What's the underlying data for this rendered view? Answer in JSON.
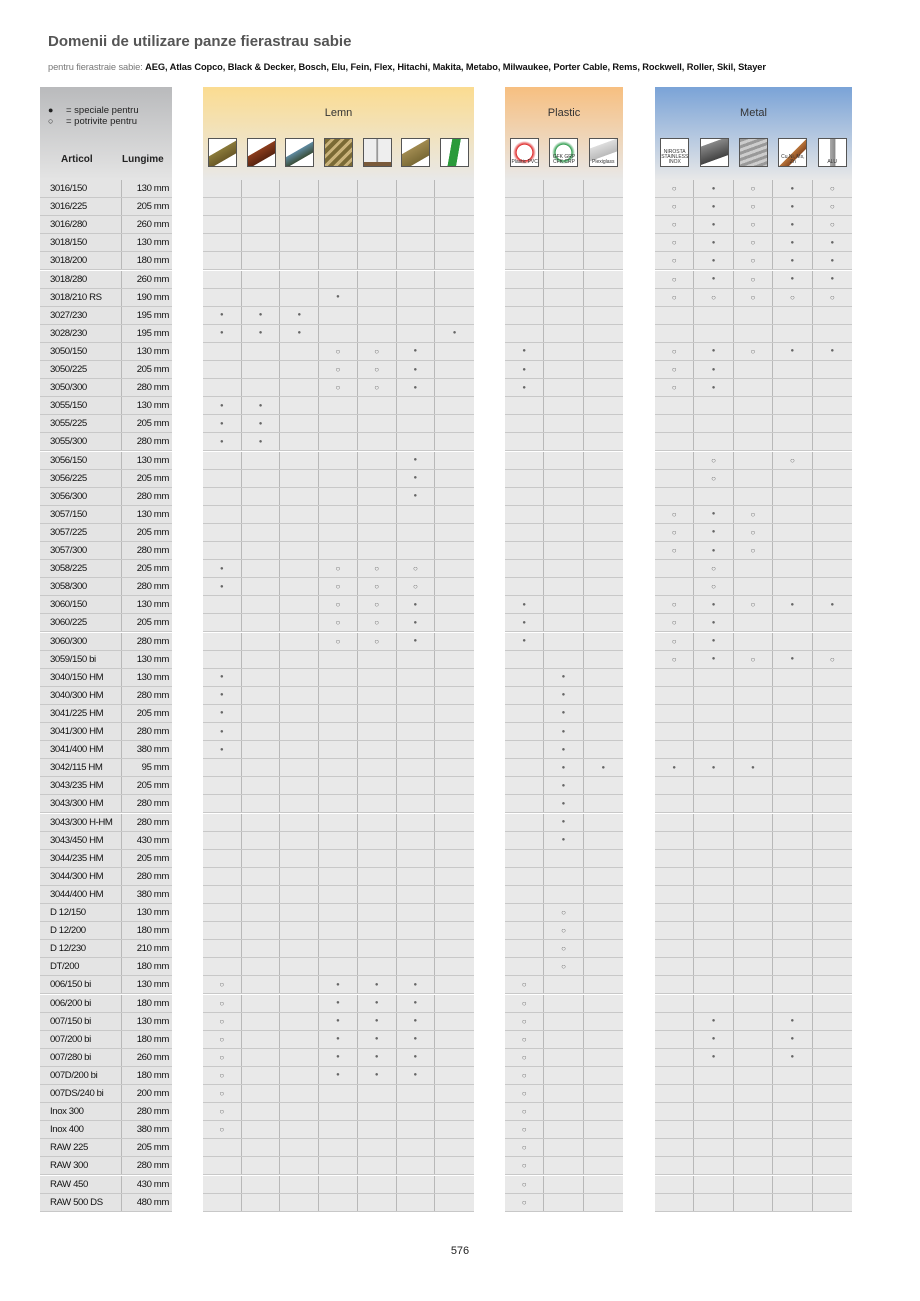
{
  "title": "Domenii de utilizare panze fierastrau sabie",
  "subtitle_prefix": "pentru fierastraie sabie:",
  "subtitle_brands": "AEG, Atlas Copco, Black & Decker, Bosch, Elu, Fein, Flex, Hitachi, Makita, Metabo, Milwaukee, Porter Cable, Rems, Rockwell, Roller, Skil, Stayer",
  "legend": {
    "filled_symbol": "●",
    "filled_label": "= speciale pentru",
    "open_symbol": "○",
    "open_label": "= potrivite pentru"
  },
  "columns": {
    "article": "Articol",
    "length": "Lungime"
  },
  "groups": [
    {
      "name": "Lemn",
      "color": "#fbdc91",
      "icons": [
        {
          "icon": "timber-beams-icon",
          "label": ""
        },
        {
          "icon": "hardwood-icon",
          "label": ""
        },
        {
          "icon": "laminated-board-icon",
          "label": ""
        },
        {
          "icon": "pallet-icon",
          "label": ""
        },
        {
          "icon": "window-frame-icon",
          "label": ""
        },
        {
          "icon": "nailed-wood-icon",
          "label": ""
        },
        {
          "icon": "green-branch-icon",
          "label": ""
        }
      ]
    },
    {
      "name": "Plastic",
      "color": "#f7bf80",
      "icons": [
        {
          "icon": "pvc-icon",
          "label": "Plastic PVC"
        },
        {
          "icon": "gfk-icon",
          "label": "GFK GRP CFK CRP"
        },
        {
          "icon": "plexiglass-icon",
          "label": "Plexiglass"
        }
      ]
    },
    {
      "name": "Metal",
      "color": "#7aa3d7",
      "icons": [
        {
          "icon": "stainless-steel-icon",
          "label": "NIROSTA STAINLESS INOX"
        },
        {
          "icon": "steel-profile-icon",
          "label": ""
        },
        {
          "icon": "sheet-metal-icon",
          "label": ""
        },
        {
          "icon": "non-ferrous-pipe-icon",
          "label": "Cu,Ni, Ms, Zn"
        },
        {
          "icon": "alu-profile-icon",
          "label": "ALU"
        }
      ]
    }
  ],
  "symbols": {
    "filled": "●",
    "open": "○"
  },
  "rows_legend": "marks per column: Lemn(7) Plastic(3) Metal(5); * = speciale, o = potrivite, . = none",
  "rows": [
    {
      "article": "3016/150",
      "length": "130 mm",
      "marks": ".......|...|o*o*o"
    },
    {
      "article": "3016/225",
      "length": "205 mm",
      "marks": ".......|...|o*o*o"
    },
    {
      "article": "3016/280",
      "length": "260 mm",
      "marks": ".......|...|o*o*o"
    },
    {
      "article": "3018/150",
      "length": "130 mm",
      "marks": ".......|...|o*o**"
    },
    {
      "article": "3018/200",
      "length": "180 mm",
      "marks": ".......|...|o*o**"
    },
    {
      "article": "3018/280",
      "length": "260 mm",
      "marks": ".......|...|o*o**"
    },
    {
      "article": "3018/210 RS",
      "length": "190 mm",
      "marks": "...*...|...|ooooo"
    },
    {
      "article": "3027/230",
      "length": "195 mm",
      "marks": "***....|...|....."
    },
    {
      "article": "3028/230",
      "length": "195 mm",
      "marks": "***...*|...|....."
    },
    {
      "article": "3050/150",
      "length": "130 mm",
      "marks": "...oo*.|*..|o*o**"
    },
    {
      "article": "3050/225",
      "length": "205 mm",
      "marks": "...oo*.|*..|o*..."
    },
    {
      "article": "3050/300",
      "length": "280 mm",
      "marks": "...oo*.|*..|o*..."
    },
    {
      "article": "3055/150",
      "length": "130 mm",
      "marks": "**.....|...|....."
    },
    {
      "article": "3055/225",
      "length": "205 mm",
      "marks": "**.....|...|....."
    },
    {
      "article": "3055/300",
      "length": "280 mm",
      "marks": "**.....|...|....."
    },
    {
      "article": "3056/150",
      "length": "130 mm",
      "marks": ".....*.|...|.o.o."
    },
    {
      "article": "3056/225",
      "length": "205 mm",
      "marks": ".....*.|...|.o..."
    },
    {
      "article": "3056/300",
      "length": "280 mm",
      "marks": ".....*.|...|....."
    },
    {
      "article": "3057/150",
      "length": "130 mm",
      "marks": ".......|...|o*o.."
    },
    {
      "article": "3057/225",
      "length": "205 mm",
      "marks": ".......|...|o*o.."
    },
    {
      "article": "3057/300",
      "length": "280 mm",
      "marks": ".......|...|o*o.."
    },
    {
      "article": "3058/225",
      "length": "205 mm",
      "marks": "*..ooo.|...|.o..."
    },
    {
      "article": "3058/300",
      "length": "280 mm",
      "marks": "*..ooo.|...|.o..."
    },
    {
      "article": "3060/150",
      "length": "130 mm",
      "marks": "...oo*.|*..|o*o**"
    },
    {
      "article": "3060/225",
      "length": "205 mm",
      "marks": "...oo*.|*..|o*..."
    },
    {
      "article": "3060/300",
      "length": "280 mm",
      "marks": "...oo*.|*..|o*..."
    },
    {
      "article": "3059/150 bi",
      "length": "130 mm",
      "marks": ".......|...|o*o*o"
    },
    {
      "article": "3040/150 HM",
      "length": "130 mm",
      "marks": "*......|.*.|....."
    },
    {
      "article": "3040/300 HM",
      "length": "280 mm",
      "marks": "*......|.*.|....."
    },
    {
      "article": "3041/225 HM",
      "length": "205 mm",
      "marks": "*......|.*.|....."
    },
    {
      "article": "3041/300 HM",
      "length": "280 mm",
      "marks": "*......|.*.|....."
    },
    {
      "article": "3041/400 HM",
      "length": "380 mm",
      "marks": "*......|.*.|....."
    },
    {
      "article": "3042/115 HM",
      "length": "95 mm",
      "marks": ".......|.**|***.."
    },
    {
      "article": "3043/235 HM",
      "length": "205 mm",
      "marks": ".......|.*.|....."
    },
    {
      "article": "3043/300 HM",
      "length": "280 mm",
      "marks": ".......|.*.|....."
    },
    {
      "article": "3043/300 H-HM",
      "length": "280 mm",
      "marks": ".......|.*.|....."
    },
    {
      "article": "3043/450 HM",
      "length": "430 mm",
      "marks": ".......|.*.|....."
    },
    {
      "article": "3044/235 HM",
      "length": "205 mm",
      "marks": ".......|...|....."
    },
    {
      "article": "3044/300 HM",
      "length": "280 mm",
      "marks": ".......|...|....."
    },
    {
      "article": "3044/400 HM",
      "length": "380 mm",
      "marks": ".......|...|....."
    },
    {
      "article": "D 12/150",
      "length": "130 mm",
      "marks": ".......|.o.|....."
    },
    {
      "article": "D 12/200",
      "length": "180 mm",
      "marks": ".......|.o.|....."
    },
    {
      "article": "D 12/230",
      "length": "210 mm",
      "marks": ".......|.o.|....."
    },
    {
      "article": "DT/200",
      "length": "180 mm",
      "marks": ".......|.o.|....."
    },
    {
      "article": "006/150 bi",
      "length": "130 mm",
      "marks": "o..***.|o..|....."
    },
    {
      "article": "006/200 bi",
      "length": "180 mm",
      "marks": "o..***.|o..|....."
    },
    {
      "article": "007/150 bi",
      "length": "130 mm",
      "marks": "o..***.|o..|.*.*."
    },
    {
      "article": "007/200 bi",
      "length": "180 mm",
      "marks": "o..***.|o..|.*.*."
    },
    {
      "article": "007/280 bi",
      "length": "260 mm",
      "marks": "o..***.|o..|.*.*."
    },
    {
      "article": "007D/200 bi",
      "length": "180 mm",
      "marks": "o..***.|o..|....."
    },
    {
      "article": "007DS/240 bi",
      "length": "200 mm",
      "marks": "o......|o..|....."
    },
    {
      "article": "Inox 300",
      "length": "280 mm",
      "marks": "o......|o..|....."
    },
    {
      "article": "Inox 400",
      "length": "380 mm",
      "marks": "o......|o..|....."
    },
    {
      "article": "RAW 225",
      "length": "205 mm",
      "marks": ".......|o..|....."
    },
    {
      "article": "RAW 300",
      "length": "280 mm",
      "marks": ".......|o..|....."
    },
    {
      "article": "RAW 450",
      "length": "430 mm",
      "marks": ".......|o..|....."
    },
    {
      "article": "RAW 500 DS",
      "length": "480 mm",
      "marks": ".......|o..|....."
    }
  ],
  "page_number": "576"
}
